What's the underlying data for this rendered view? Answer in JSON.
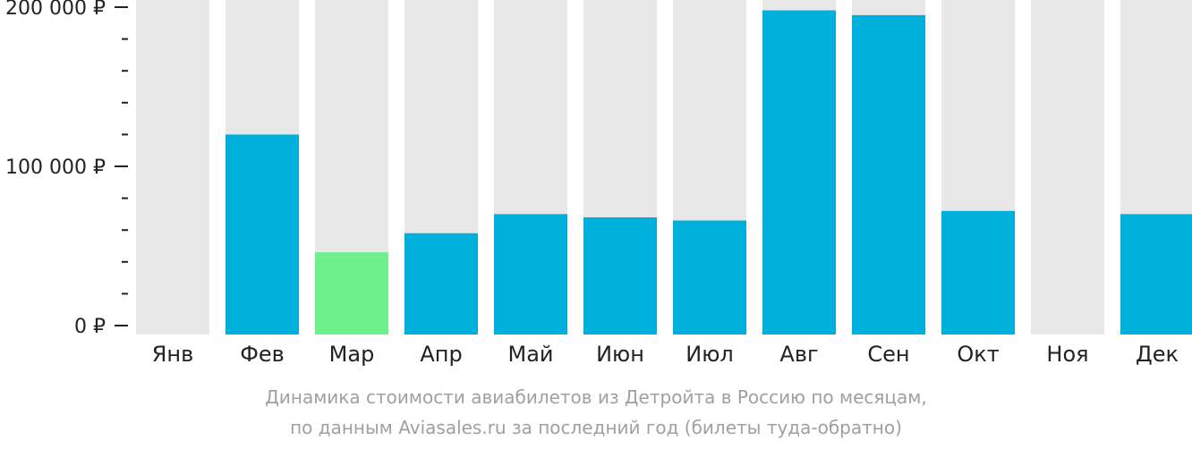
{
  "chart_data": {
    "type": "bar",
    "currency": "₽",
    "ylim": [
      0,
      200000
    ],
    "y_ticks": [
      {
        "value": 0,
        "label": "0 ₽"
      },
      {
        "value": 100000,
        "label": "100 000 ₽"
      },
      {
        "value": 200000,
        "label": "200 000 ₽"
      }
    ],
    "minor_tick_step": 20000,
    "categories": [
      "Янв",
      "Фев",
      "Мар",
      "Апр",
      "Май",
      "Июн",
      "Июл",
      "Авг",
      "Сен",
      "Окт",
      "Ноя",
      "Дек"
    ],
    "values": [
      null,
      120000,
      46000,
      58000,
      70000,
      68000,
      66000,
      198000,
      195000,
      72000,
      null,
      70000
    ],
    "highlight_index": 2,
    "colors": {
      "bar": "#00b0dc",
      "highlight": "#6ef08a",
      "background_bar": "#e8e8e8",
      "axis": "#222222"
    },
    "caption": [
      "Динамика стоимости авиабилетов из Детройта в Россию по месяцам,",
      "по данным Aviasales.ru за последний год (билеты туда-обратно)"
    ]
  }
}
